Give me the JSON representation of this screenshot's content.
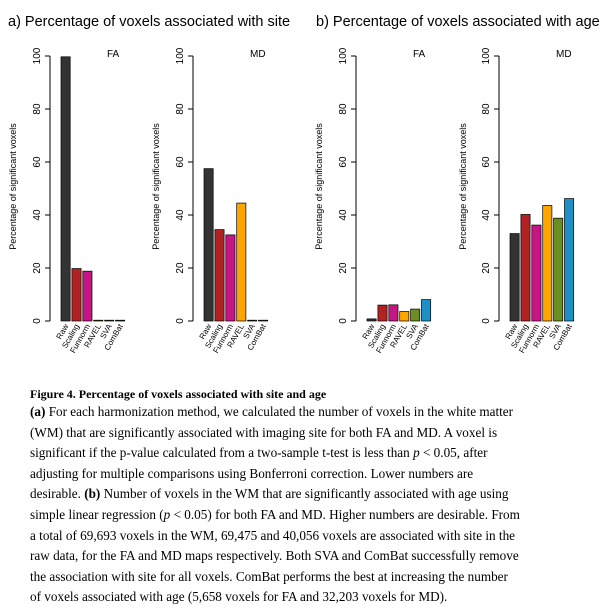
{
  "panels": [
    {
      "label": "a) Percentage of voxels associated with site"
    },
    {
      "label": "b) Percentage of voxels associated with age"
    }
  ],
  "chart_data": [
    {
      "type": "bar",
      "panel": "a",
      "title": "FA",
      "ylabel": "Percentage of significant voxels",
      "ylim": [
        0,
        100
      ],
      "yticks": [
        0,
        20,
        40,
        60,
        80,
        100
      ],
      "categories": [
        "Raw",
        "Scaling",
        "Funnorm",
        "RAVEL",
        "SVA",
        "ComBat"
      ],
      "values": [
        99.7,
        19.8,
        18.8,
        0.3,
        0.0,
        0.0
      ],
      "colors": [
        "#333333",
        "#b22222",
        "#c71585",
        "#ffa500",
        "#6b8e23",
        "#1e90c8"
      ]
    },
    {
      "type": "bar",
      "panel": "a",
      "title": "MD",
      "ylabel": "Percentage of significant voxels",
      "ylim": [
        0,
        100
      ],
      "yticks": [
        0,
        20,
        40,
        60,
        80,
        100
      ],
      "categories": [
        "Raw",
        "Scaling",
        "Funnorm",
        "RAVEL",
        "SVA",
        "ComBat"
      ],
      "values": [
        57.5,
        34.5,
        32.5,
        44.5,
        0.0,
        0.0
      ],
      "colors": [
        "#333333",
        "#b22222",
        "#c71585",
        "#ffa500",
        "#6b8e23",
        "#1e90c8"
      ]
    },
    {
      "type": "bar",
      "panel": "b",
      "title": "FA",
      "ylabel": "Percentage of significant voxels",
      "ylim": [
        0,
        100
      ],
      "yticks": [
        0,
        20,
        40,
        60,
        80,
        100
      ],
      "categories": [
        "Raw",
        "Scaling",
        "Funnorm",
        "RAVEL",
        "SVA",
        "ComBat"
      ],
      "values": [
        0.8,
        6.0,
        6.1,
        3.6,
        4.5,
        8.1
      ],
      "colors": [
        "#333333",
        "#b22222",
        "#c71585",
        "#ffa500",
        "#6b8e23",
        "#1e90c8"
      ]
    },
    {
      "type": "bar",
      "panel": "b",
      "title": "MD",
      "ylabel": "Percentage of significant voxels",
      "ylim": [
        0,
        100
      ],
      "yticks": [
        0,
        20,
        40,
        60,
        80,
        100
      ],
      "categories": [
        "Raw",
        "Scaling",
        "Funnorm",
        "RAVEL",
        "SVA",
        "ComBat"
      ],
      "values": [
        33.0,
        40.2,
        36.2,
        43.6,
        38.8,
        46.2
      ],
      "colors": [
        "#333333",
        "#b22222",
        "#c71585",
        "#ffa500",
        "#6b8e23",
        "#1e90c8"
      ]
    }
  ],
  "caption": {
    "title": "Figure 4. Percentage of voxels associated with site and age",
    "lines": [
      [
        {
          "t": "(a)",
          "s": "bold"
        },
        {
          "t": " For each harmonization method, we calculated the number of voxels in the white matter"
        }
      ],
      [
        {
          "t": "(WM) that are significantly associated with imaging site for both FA and MD. A voxel is"
        }
      ],
      [
        {
          "t": "significant if the p-value calculated from a two-sample t-test is less than "
        },
        {
          "t": "p",
          "s": "ital"
        },
        {
          "t": " < 0.05, after"
        }
      ],
      [
        {
          "t": "adjusting for multiple comparisons using Bonferroni correction. Lower numbers are"
        }
      ],
      [
        {
          "t": "desirable. "
        },
        {
          "t": "(b)",
          "s": "bold"
        },
        {
          "t": " Number of voxels in the WM that are significantly associated with age using"
        }
      ],
      [
        {
          "t": "simple linear regression ("
        },
        {
          "t": "p",
          "s": "ital"
        },
        {
          "t": " < 0.05) for both FA and MD. Higher numbers are desirable. From"
        }
      ],
      [
        {
          "t": "a total of 69,693 voxels in the WM, 69,475 and 40,056 voxels are associated with site in the"
        }
      ],
      [
        {
          "t": "raw data, for the FA and MD maps respectively. Both SVA and ComBat successfully remove"
        }
      ],
      [
        {
          "t": "the association with site for all voxels. ComBat performs the best at increasing the number"
        }
      ],
      [
        {
          "t": "of voxels associated with age (5,658 voxels for FA and 32,203 voxels for MD)."
        }
      ]
    ]
  }
}
